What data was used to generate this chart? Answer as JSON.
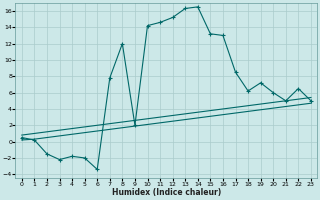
{
  "xlabel": "Humidex (Indice chaleur)",
  "bg_color": "#cce8e8",
  "grid_color": "#aacccc",
  "line_color": "#006868",
  "xlim": [
    -0.5,
    23.5
  ],
  "ylim": [
    -4.5,
    17
  ],
  "xticks": [
    0,
    1,
    2,
    3,
    4,
    5,
    6,
    7,
    8,
    9,
    10,
    11,
    12,
    13,
    14,
    15,
    16,
    17,
    18,
    19,
    20,
    21,
    22,
    23
  ],
  "yticks": [
    -4,
    -2,
    0,
    2,
    4,
    6,
    8,
    10,
    12,
    14,
    16
  ],
  "line1_x": [
    0,
    1,
    2,
    3,
    4,
    5,
    6,
    7,
    8,
    9,
    10,
    11,
    12,
    13,
    14,
    15,
    16,
    17,
    18,
    19,
    20,
    21,
    22,
    23
  ],
  "line1_y": [
    0.2,
    0.3,
    0.5,
    0.7,
    0.9,
    1.1,
    1.3,
    1.5,
    1.7,
    1.9,
    2.1,
    2.3,
    2.5,
    2.7,
    2.9,
    3.1,
    3.3,
    3.5,
    3.7,
    3.9,
    4.1,
    4.3,
    4.5,
    4.7
  ],
  "line2_x": [
    0,
    1,
    2,
    3,
    4,
    5,
    6,
    7,
    8,
    9,
    10,
    11,
    12,
    13,
    14,
    15,
    16,
    17,
    18,
    19,
    20,
    21,
    22,
    23
  ],
  "line2_y": [
    0.8,
    1.0,
    1.2,
    1.4,
    1.6,
    1.8,
    2.0,
    2.2,
    2.4,
    2.6,
    2.8,
    3.0,
    3.2,
    3.4,
    3.6,
    3.8,
    4.0,
    4.2,
    4.4,
    4.6,
    4.8,
    5.0,
    5.2,
    5.4
  ],
  "main_x": [
    0,
    1,
    2,
    3,
    4,
    5,
    6,
    7,
    8,
    9,
    10,
    11,
    12,
    13,
    14,
    15,
    16,
    17,
    18,
    19,
    20,
    21,
    22,
    23
  ],
  "main_y": [
    0.5,
    0.2,
    -1.5,
    -2.2,
    -1.8,
    -2.0,
    -3.4,
    7.8,
    12.0,
    2.0,
    14.2,
    14.6,
    15.2,
    16.3,
    16.5,
    13.2,
    13.0,
    8.5,
    6.2,
    7.2,
    6.0,
    5.0,
    6.5,
    5.0
  ]
}
